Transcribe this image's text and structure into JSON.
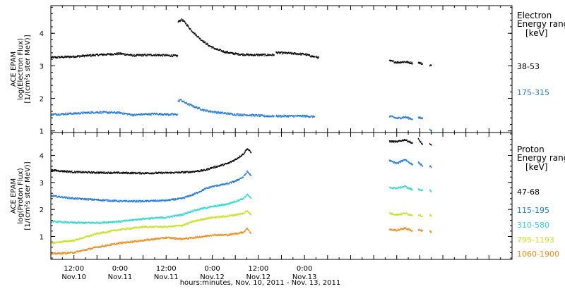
{
  "chart_data": [
    {
      "type": "scatter",
      "panel": "electron",
      "ylabel_lines": [
        "ACE EPAM",
        "log(Electron Flux)",
        "[1/(cm²s ster MeV)]"
      ],
      "ylim": [
        0.95,
        4.85
      ],
      "yticks": [
        1,
        2,
        3,
        4
      ],
      "legend_title": [
        "Electron",
        "Energy range",
        "[keV]"
      ],
      "series": [
        {
          "name": "38-53",
          "color": "#000000",
          "segments": [
            {
              "x": [
                0,
                6,
                12,
                18,
                21.5,
                23,
                27,
                31,
                32.9
              ],
              "y": [
                3.25,
                3.28,
                3.33,
                3.37,
                3.31,
                3.32,
                3.33,
                3.31,
                3.3
              ]
            },
            {
              "x": [
                33.0,
                34,
                35,
                36,
                37,
                39,
                41,
                43,
                45,
                47,
                49,
                52,
                55,
                58
              ],
              "y": [
                4.35,
                4.42,
                4.3,
                4.15,
                4.02,
                3.8,
                3.62,
                3.5,
                3.43,
                3.38,
                3.35,
                3.33,
                3.33,
                3.33
              ]
            },
            {
              "x": [
                58.5,
                62,
                66,
                68.5
              ],
              "y": [
                3.4,
                3.38,
                3.35,
                3.27
              ]
            },
            {
              "x": [
                68.8,
                69.6
              ],
              "y": [
                3.27,
                3.25
              ]
            },
            {
              "x": [
                88,
                90,
                92,
                94
              ],
              "y": [
                3.15,
                3.1,
                3.12,
                3.08
              ]
            },
            {
              "x": [
                95.5,
                96.6
              ],
              "y": [
                3.1,
                3.05
              ]
            },
            {
              "x": [
                98.5,
                98.9
              ],
              "y": [
                3.02,
                3.0
              ]
            }
          ]
        },
        {
          "name": "175-315",
          "color": "#1e78d8",
          "segments": [
            {
              "x": [
                0,
                6,
                12,
                18,
                21.5,
                23,
                27,
                31,
                32.9
              ],
              "y": [
                1.5,
                1.53,
                1.57,
                1.55,
                1.48,
                1.5,
                1.52,
                1.5,
                1.5
              ]
            },
            {
              "x": [
                33.0,
                33.6,
                35,
                37,
                40,
                44,
                48,
                52,
                56,
                58
              ],
              "y": [
                1.9,
                1.95,
                1.85,
                1.75,
                1.62,
                1.55,
                1.5,
                1.48,
                1.45,
                1.45
              ]
            },
            {
              "x": [
                58.5,
                62,
                66,
                68.5
              ],
              "y": [
                1.45,
                1.45,
                1.45,
                1.43
              ]
            },
            {
              "x": [
                88,
                90,
                92,
                94
              ],
              "y": [
                1.45,
                1.38,
                1.42,
                1.36
              ]
            },
            {
              "x": [
                95.5,
                96.6
              ],
              "y": [
                1.4,
                1.38
              ]
            },
            {
              "x": [
                98.5,
                98.9
              ],
              "y": [
                1.05,
                1.02
              ]
            }
          ]
        }
      ]
    },
    {
      "type": "scatter",
      "panel": "proton",
      "ylabel_lines": [
        "ACE EPAM",
        "log(Proton Flux)",
        "[1/(cm²s ster MeV)]"
      ],
      "ylim": [
        0.15,
        4.85
      ],
      "yticks": [
        1,
        2,
        3,
        4
      ],
      "legend_title": [
        "Proton",
        "Energy range",
        "[keV]"
      ],
      "xlabel": "hours:minutes, Nov. 10, 2011 - Nov. 13, 2011",
      "x_range_hours": [
        0,
        120
      ],
      "xticks": [
        {
          "h": 6,
          "lines": [
            "12:00",
            "Nov.10"
          ]
        },
        {
          "h": 18,
          "lines": [
            "0:00",
            "Nov.11"
          ]
        },
        {
          "h": 30,
          "lines": [
            "12:00",
            "Nov.11"
          ]
        },
        {
          "h": 42,
          "lines": [
            "0:00",
            "Nov.12"
          ]
        },
        {
          "h": 54,
          "lines": [
            "12:00",
            "Nov.12"
          ]
        },
        {
          "h": 66,
          "lines": [
            "0:00",
            "Nov.13"
          ]
        }
      ],
      "series": [
        {
          "name": "47-68",
          "color": "#000000",
          "segments": [
            {
              "x": [
                0,
                6,
                12,
                18,
                24,
                30,
                36,
                40,
                42
              ],
              "y": [
                3.45,
                3.38,
                3.36,
                3.35,
                3.34,
                3.35,
                3.38,
                3.45,
                3.55
              ]
            },
            {
              "x": [
                42.2,
                44,
                46,
                48,
                50,
                51,
                52
              ],
              "y": [
                3.55,
                3.62,
                3.7,
                3.85,
                4.05,
                4.25,
                4.1
              ]
            },
            {
              "x": [
                88,
                90,
                92,
                94
              ],
              "y": [
                4.52,
                4.5,
                4.58,
                4.45
              ]
            },
            {
              "x": [
                95.5,
                96.6
              ],
              "y": [
                4.6,
                4.4
              ]
            },
            {
              "x": [
                98.5,
                98.9
              ],
              "y": [
                4.4,
                4.38
              ]
            }
          ]
        },
        {
          "name": "115-195",
          "color": "#1e78d8",
          "segments": [
            {
              "x": [
                0,
                6,
                12,
                18,
                24,
                30,
                34,
                37,
                40,
                42
              ],
              "y": [
                2.5,
                2.4,
                2.35,
                2.3,
                2.3,
                2.33,
                2.4,
                2.55,
                2.75,
                2.85
              ]
            },
            {
              "x": [
                42.2,
                44,
                46,
                48,
                50,
                51,
                52
              ],
              "y": [
                2.85,
                2.9,
                2.95,
                3.05,
                3.2,
                3.4,
                3.25
              ]
            },
            {
              "x": [
                88,
                90,
                92,
                94
              ],
              "y": [
                3.8,
                3.7,
                3.85,
                3.65
              ]
            },
            {
              "x": [
                95.5,
                96.6
              ],
              "y": [
                3.75,
                3.6
              ]
            },
            {
              "x": [
                98.5,
                98.9
              ],
              "y": [
                3.6,
                3.55
              ]
            }
          ]
        },
        {
          "name": "310-580",
          "color": "#2ed8d0",
          "segments": [
            {
              "x": [
                0,
                6,
                12,
                18,
                24,
                30,
                34,
                37,
                40,
                42
              ],
              "y": [
                1.55,
                1.5,
                1.5,
                1.55,
                1.65,
                1.7,
                1.8,
                1.95,
                2.05,
                2.1
              ]
            },
            {
              "x": [
                42.2,
                44,
                46,
                48,
                50,
                51,
                52
              ],
              "y": [
                2.1,
                2.15,
                2.2,
                2.3,
                2.4,
                2.55,
                2.4
              ]
            },
            {
              "x": [
                88,
                90,
                92,
                94
              ],
              "y": [
                2.8,
                2.78,
                2.85,
                2.72
              ]
            },
            {
              "x": [
                95.5,
                96.6
              ],
              "y": [
                2.75,
                2.7
              ]
            },
            {
              "x": [
                98.5,
                98.9
              ],
              "y": [
                2.7,
                2.65
              ]
            }
          ]
        },
        {
          "name": "795-1193",
          "color": "#c8e020",
          "segments": [
            {
              "x": [
                0,
                6,
                12,
                18,
                24,
                30,
                34,
                37,
                40,
                42
              ],
              "y": [
                0.75,
                0.85,
                1.1,
                1.25,
                1.35,
                1.35,
                1.4,
                1.55,
                1.65,
                1.7
              ]
            },
            {
              "x": [
                42.2,
                44,
                46,
                48,
                50,
                51,
                52
              ],
              "y": [
                1.7,
                1.72,
                1.75,
                1.8,
                1.85,
                1.95,
                1.8
              ]
            },
            {
              "x": [
                88,
                90,
                92,
                94
              ],
              "y": [
                1.85,
                1.8,
                1.85,
                1.78
              ]
            },
            {
              "x": [
                95.5,
                96.6
              ],
              "y": [
                1.8,
                1.75
              ]
            },
            {
              "x": [
                98.5,
                98.9
              ],
              "y": [
                1.8,
                1.75
              ]
            }
          ]
        },
        {
          "name": "1060-1900",
          "color": "#f08a1a",
          "segments": [
            {
              "x": [
                0,
                6,
                12,
                18,
                24,
                30,
                34,
                37,
                40,
                42
              ],
              "y": [
                0.35,
                0.4,
                0.6,
                0.75,
                0.85,
                0.95,
                0.9,
                0.95,
                1.0,
                1.05
              ]
            },
            {
              "x": [
                42.2,
                44,
                46,
                48,
                50,
                51,
                52
              ],
              "y": [
                1.05,
                1.05,
                1.05,
                1.1,
                1.15,
                1.3,
                1.1
              ]
            },
            {
              "x": [
                88,
                90,
                92,
                94
              ],
              "y": [
                1.25,
                1.22,
                1.3,
                1.2
              ]
            },
            {
              "x": [
                95.5,
                96.6
              ],
              "y": [
                1.25,
                1.2
              ]
            },
            {
              "x": [
                98.5,
                98.9
              ],
              "y": [
                1.2,
                1.15
              ]
            }
          ]
        }
      ]
    }
  ]
}
